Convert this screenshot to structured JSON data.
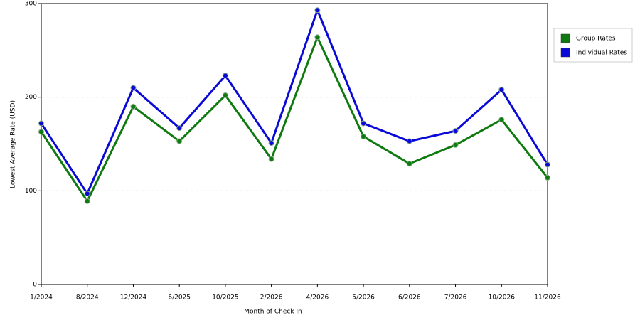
{
  "chart_data": {
    "type": "line",
    "x_label": "Month of Check In",
    "y_label": "Lowest Average Rate (USD)",
    "categories": [
      "1/2024",
      "8/2024",
      "12/2024",
      "6/2025",
      "10/2025",
      "2/2026",
      "4/2026",
      "5/2026",
      "6/2026",
      "7/2026",
      "10/2026",
      "11/2026"
    ],
    "series": [
      {
        "name": "Group Rates",
        "color": "#0f7a0f",
        "values": [
          163,
          89,
          190,
          153,
          202,
          134,
          264,
          158,
          129,
          149,
          176,
          114
        ]
      },
      {
        "name": "Individual Rates",
        "color": "#0a0ad6",
        "values": [
          172,
          97,
          210,
          167,
          223,
          151,
          293,
          172,
          153,
          164,
          208,
          128
        ]
      }
    ],
    "ylim": [
      0,
      300
    ],
    "yticks": [
      0,
      100,
      200,
      300
    ],
    "grid": true,
    "legend": "right"
  }
}
